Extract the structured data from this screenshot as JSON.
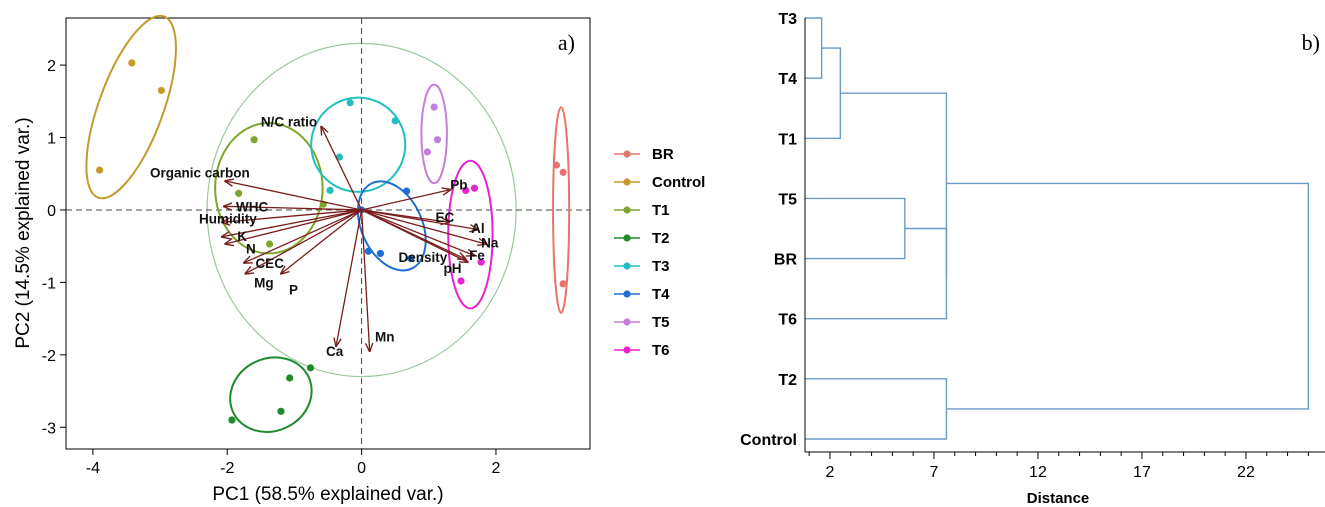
{
  "chart_data": [
    {
      "type": "scatter",
      "panel_label": "a)",
      "xlabel": "PC1 (58.5% explained var.)",
      "ylabel": "PC2 (14.5% explained var.)",
      "xlim": [
        -4.4,
        3.4
      ],
      "ylim": [
        -3.3,
        2.65
      ],
      "xticks": [
        -4,
        -2,
        0,
        2
      ],
      "yticks": [
        2,
        1,
        0,
        -1,
        -2,
        -3
      ],
      "reference_lines": {
        "x": 0,
        "y": 0
      },
      "correlation_circle_radius": 2.3,
      "legend_placement": "right",
      "series": [
        {
          "name": "BR",
          "color": "#E8736C",
          "points": [
            [
              2.9,
              0.62
            ],
            [
              3.0,
              0.52
            ],
            [
              3.0,
              -1.02
            ]
          ],
          "ellipse": {
            "cx": 2.97,
            "cy": 0.0,
            "rx": 0.12,
            "ry": 1.42,
            "angle": 0
          }
        },
        {
          "name": "Control",
          "color": "#C49A2A",
          "points": [
            [
              -3.42,
              2.03
            ],
            [
              -2.98,
              1.65
            ],
            [
              -3.9,
              0.55
            ]
          ],
          "ellipse": {
            "cx": -3.43,
            "cy": 1.42,
            "rx": 0.48,
            "ry": 1.33,
            "angle": 20
          }
        },
        {
          "name": "T1",
          "color": "#7EA62C",
          "points": [
            [
              -1.6,
              0.97
            ],
            [
              -1.83,
              0.23
            ],
            [
              -0.57,
              0.08
            ],
            [
              -1.37,
              -0.47
            ]
          ],
          "ellipse": {
            "cx": -1.38,
            "cy": 0.3,
            "rx": 0.8,
            "ry": 0.9,
            "angle": 0
          }
        },
        {
          "name": "T2",
          "color": "#1E8A2C",
          "points": [
            [
              -1.93,
              -2.9
            ],
            [
              -1.2,
              -2.78
            ],
            [
              -1.07,
              -2.32
            ],
            [
              -0.76,
              -2.18
            ]
          ],
          "ellipse": {
            "cx": -1.35,
            "cy": -2.55,
            "rx": 0.62,
            "ry": 0.5,
            "angle": -25
          }
        },
        {
          "name": "T3",
          "color": "#22BFC0",
          "points": [
            [
              -0.17,
              1.48
            ],
            [
              0.5,
              1.23
            ],
            [
              -0.33,
              0.73
            ],
            [
              -0.47,
              0.27
            ]
          ],
          "ellipse": {
            "cx": -0.05,
            "cy": 0.9,
            "rx": 0.7,
            "ry": 0.65,
            "angle": 10
          }
        },
        {
          "name": "T4",
          "color": "#1F6ED4",
          "points": [
            [
              0.67,
              0.26
            ],
            [
              0.0,
              0.0
            ],
            [
              0.1,
              -0.57
            ],
            [
              0.28,
              -0.6
            ],
            [
              0.73,
              -0.67
            ]
          ],
          "ellipse": {
            "cx": 0.45,
            "cy": -0.22,
            "rx": 0.45,
            "ry": 0.65,
            "angle": -25
          }
        },
        {
          "name": "T5",
          "color": "#C27FDC",
          "points": [
            [
              1.08,
              1.42
            ],
            [
              1.13,
              0.97
            ],
            [
              0.98,
              0.8
            ]
          ],
          "ellipse": {
            "cx": 1.08,
            "cy": 1.05,
            "rx": 0.19,
            "ry": 0.68,
            "angle": 0
          }
        },
        {
          "name": "T6",
          "color": "#E822D4",
          "points": [
            [
              1.68,
              0.3
            ],
            [
              1.55,
              0.27
            ],
            [
              1.78,
              -0.72
            ],
            [
              1.48,
              -0.98
            ]
          ],
          "ellipse": {
            "cx": 1.62,
            "cy": -0.34,
            "rx": 0.33,
            "ry": 1.02,
            "angle": 0
          }
        }
      ],
      "loadings": [
        {
          "name": "N/C ratio",
          "x": -0.6,
          "y": 1.15,
          "lx": -1.5,
          "ly": 1.22
        },
        {
          "name": "Organic carbon",
          "x": -2.03,
          "y": 0.4,
          "lx": -3.15,
          "ly": 0.52
        },
        {
          "name": "WHC",
          "x": -2.05,
          "y": 0.05,
          "lx": -1.87,
          "ly": 0.05
        },
        {
          "name": "Humidity",
          "x": -2.08,
          "y": -0.17,
          "lx": -2.42,
          "ly": -0.12
        },
        {
          "name": "K",
          "x": -2.08,
          "y": -0.37,
          "lx": -1.85,
          "ly": -0.36
        },
        {
          "name": "N",
          "x": -2.03,
          "y": -0.47,
          "lx": -1.72,
          "ly": -0.53
        },
        {
          "name": "CEC",
          "x": -1.75,
          "y": -0.73,
          "lx": -1.58,
          "ly": -0.73
        },
        {
          "name": "Mg",
          "x": -1.73,
          "y": -0.88,
          "lx": -1.6,
          "ly": -1.0
        },
        {
          "name": "P",
          "x": -1.2,
          "y": -0.88,
          "lx": -1.08,
          "ly": -1.1
        },
        {
          "name": "Ca",
          "x": -0.38,
          "y": -1.88,
          "lx": -0.53,
          "ly": -1.95
        },
        {
          "name": "Mn",
          "x": 0.12,
          "y": -1.95,
          "lx": 0.2,
          "ly": -1.75
        },
        {
          "name": "Pb",
          "x": 1.32,
          "y": 0.28,
          "lx": 1.32,
          "ly": 0.35
        },
        {
          "name": "EC",
          "x": 1.3,
          "y": -0.17,
          "lx": 1.1,
          "ly": -0.1
        },
        {
          "name": "Al",
          "x": 1.73,
          "y": -0.27,
          "lx": 1.63,
          "ly": -0.25
        },
        {
          "name": "Na",
          "x": 1.85,
          "y": -0.47,
          "lx": 1.78,
          "ly": -0.45
        },
        {
          "name": "Fe",
          "x": 1.68,
          "y": -0.63,
          "lx": 1.6,
          "ly": -0.62
        },
        {
          "name": "Density",
          "x": 1.55,
          "y": -0.68,
          "lx": 0.55,
          "ly": -0.65
        },
        {
          "name": "pH",
          "x": 1.58,
          "y": -0.72,
          "lx": 1.22,
          "ly": -0.8
        }
      ]
    },
    {
      "type": "dendrogram",
      "panel_label": "b)",
      "xlabel": "Distance",
      "xlim": [
        0.8,
        25.8
      ],
      "xticks": [
        2,
        7,
        12,
        17,
        22
      ],
      "leaves": [
        "T3",
        "T4",
        "T1",
        "T5",
        "BR",
        "T6",
        "T2",
        "Control"
      ],
      "line_color": "#6B9AC8",
      "merges": [
        {
          "a": "T3",
          "b": "T4",
          "height": 1.6
        },
        {
          "a": "T3+T4",
          "b": "T1",
          "height": 2.5
        },
        {
          "a": "T5",
          "b": "BR",
          "height": 5.6
        },
        {
          "a": "T5+BR",
          "b": "T6",
          "height": 7.6
        },
        {
          "a": "T2",
          "b": "Control",
          "height": 7.6
        },
        {
          "a": "T3+T4+T1",
          "b": "T5+BR+T6",
          "height": 7.6
        },
        {
          "a": "T3+T4+T1+T5+BR+T6",
          "b": "T2+Control",
          "height": 25.0
        }
      ]
    }
  ]
}
